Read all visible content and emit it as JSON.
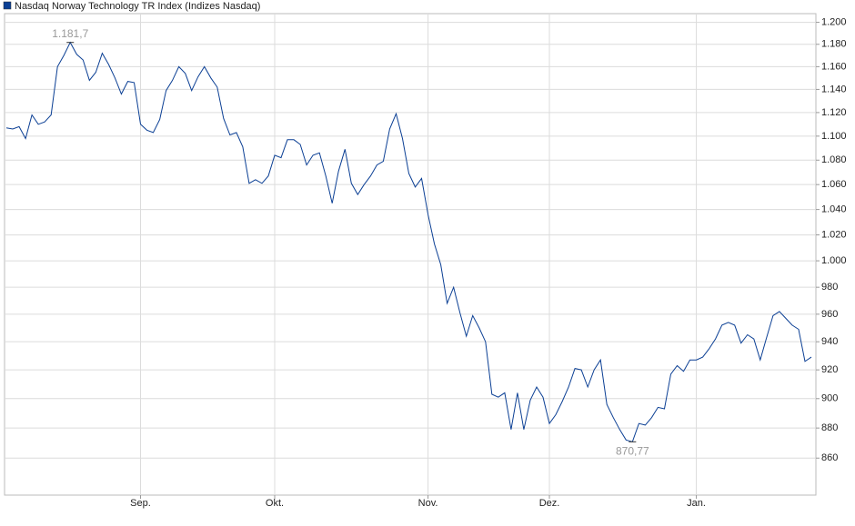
{
  "chart_data": {
    "type": "line",
    "categories": [
      null,
      null,
      null,
      null,
      null,
      null,
      null,
      null,
      null,
      null,
      null,
      null,
      null,
      null,
      null,
      null,
      null,
      null,
      null,
      null,
      null,
      "Sep.",
      null,
      null,
      null,
      null,
      null,
      null,
      null,
      null,
      null,
      null,
      null,
      null,
      null,
      null,
      null,
      null,
      null,
      null,
      null,
      null,
      "Okt.",
      null,
      null,
      null,
      null,
      null,
      null,
      null,
      null,
      null,
      null,
      null,
      null,
      null,
      null,
      null,
      null,
      null,
      null,
      null,
      null,
      null,
      null,
      null,
      "Nov.",
      null,
      null,
      null,
      null,
      null,
      null,
      null,
      null,
      null,
      null,
      null,
      null,
      null,
      null,
      null,
      null,
      null,
      null,
      "Dez.",
      null,
      null,
      null,
      null,
      null,
      null,
      null,
      null,
      null,
      null,
      null,
      null,
      null,
      null,
      null,
      null,
      null,
      null,
      null,
      null,
      null,
      null,
      "Jan.",
      null,
      null,
      null,
      null,
      null,
      null,
      null,
      null,
      null,
      null,
      null,
      null,
      null,
      null,
      null,
      null,
      null,
      null
    ],
    "series": [
      {
        "name": "Nasdaq Norway Technology TR Index  (Indizes Nasdaq)",
        "color": "#0b3f94",
        "values": [
          1107,
          1106,
          1108,
          1098,
          1118,
          1110,
          1112,
          1118,
          1160,
          1170,
          1181.7,
          1171,
          1166,
          1148,
          1155,
          1172,
          1162,
          1150,
          1136,
          1147,
          1146,
          1110,
          1105,
          1103,
          1114,
          1139,
          1148,
          1160,
          1154,
          1139,
          1151,
          1160,
          1150,
          1142,
          1115,
          1101,
          1103,
          1091,
          1061,
          1064,
          1061,
          1067,
          1084,
          1082,
          1097,
          1097,
          1093,
          1076,
          1084,
          1086,
          1067,
          1045,
          1071,
          1089,
          1061,
          1052,
          1060,
          1067,
          1076,
          1079,
          1106,
          1119,
          1098,
          1069,
          1058,
          1065,
          1036,
          1013,
          997,
          968,
          980,
          961,
          944,
          959,
          950,
          940,
          903,
          901,
          904,
          879,
          904,
          879,
          899,
          908,
          901,
          883,
          889,
          898,
          908,
          921,
          920,
          908,
          920,
          927,
          896,
          887,
          879,
          872,
          870.77,
          883,
          882,
          887,
          894,
          893,
          917,
          923,
          919,
          927,
          927,
          929,
          935,
          942,
          952,
          954,
          952,
          939,
          945,
          942,
          927,
          943,
          959,
          962,
          957,
          952,
          949,
          926,
          929
        ],
        "value_labels": [
          null,
          null,
          null,
          null,
          null,
          null,
          null,
          null,
          null,
          null,
          "1.181,7",
          null,
          null,
          null,
          null,
          null,
          null,
          null,
          null,
          null,
          null,
          null,
          null,
          null,
          null,
          null,
          null,
          null,
          null,
          null,
          null,
          null,
          null,
          null,
          null,
          null,
          null,
          null,
          null,
          null,
          null,
          null,
          null,
          null,
          null,
          null,
          null,
          null,
          null,
          null,
          null,
          null,
          null,
          null,
          null,
          null,
          null,
          null,
          null,
          null,
          null,
          null,
          null,
          null,
          null,
          null,
          null,
          null,
          null,
          null,
          null,
          null,
          null,
          null,
          null,
          null,
          null,
          null,
          null,
          null,
          null,
          null,
          null,
          null,
          null,
          null,
          null,
          null,
          null,
          null,
          null,
          null,
          null,
          null,
          null,
          null,
          null,
          null,
          "870,77",
          null,
          null,
          null,
          null,
          null,
          null,
          null,
          null,
          null,
          null,
          null,
          null,
          null,
          null,
          null,
          null,
          null,
          null,
          null,
          null,
          null,
          null,
          null,
          null,
          null,
          null,
          null,
          null
        ]
      }
    ],
    "ylim": [
      836,
      1208
    ],
    "log_scale": true,
    "grid": true,
    "yticks": [
      860,
      880,
      900,
      920,
      940,
      960,
      980,
      {
        "value": 1000,
        "label": "1.000"
      },
      {
        "value": 1020,
        "label": "1.020"
      },
      {
        "value": 1040,
        "label": "1.040"
      },
      {
        "value": 1060,
        "label": "1.060"
      },
      {
        "value": 1080,
        "label": "1.080"
      },
      {
        "value": 1100,
        "label": "1.100"
      },
      {
        "value": 1120,
        "label": "1.120"
      },
      {
        "value": 1140,
        "label": "1.140"
      },
      {
        "value": 1160,
        "label": "1.160"
      },
      {
        "value": 1180,
        "label": "1.180"
      },
      {
        "value": 1200,
        "label": "1.200"
      }
    ]
  }
}
